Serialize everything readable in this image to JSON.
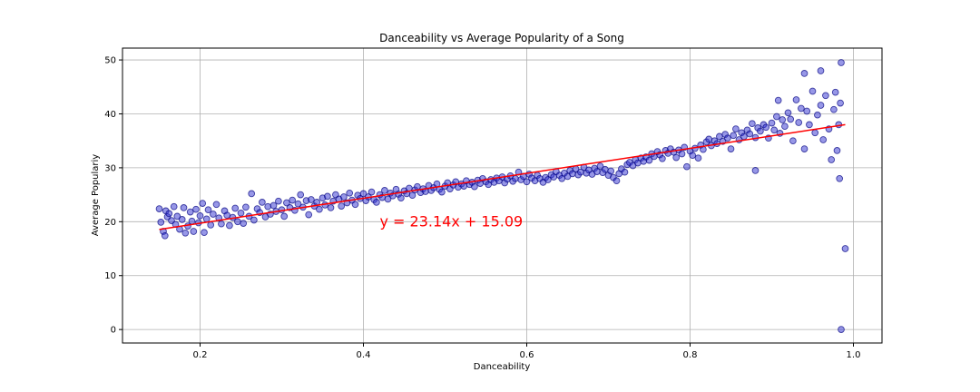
{
  "chart_data": {
    "type": "scatter",
    "title": "Danceability vs Average Popularity of a Song",
    "xlabel": "Danceability",
    "ylabel": "Average Populariy",
    "xlim": [
      0.105,
      1.035
    ],
    "ylim": [
      -2.5,
      52.2
    ],
    "xticks": [
      0.2,
      0.4,
      0.6,
      0.8,
      1.0
    ],
    "xtick_labels": [
      "0.2",
      "0.4",
      "0.6",
      "0.8",
      "1.0"
    ],
    "yticks": [
      0,
      10,
      20,
      30,
      40,
      50
    ],
    "ytick_labels": [
      "0",
      "10",
      "20",
      "30",
      "40",
      "50"
    ],
    "grid": true,
    "point_color": "#3030d0",
    "point_edge_color": "#000080",
    "line_color": "#ff0000",
    "regression": {
      "slope": 23.14,
      "intercept": 15.09,
      "x_range": [
        0.15,
        0.99
      ]
    },
    "annotation": {
      "text": "y = 23.14x + 15.09",
      "x": 0.42,
      "y": 20
    },
    "outliers": [
      [
        0.985,
        0
      ],
      [
        0.99,
        15
      ],
      [
        0.985,
        49.5
      ],
      [
        0.96,
        48
      ],
      [
        0.94,
        47.5
      ],
      [
        0.88,
        29.5
      ],
      [
        0.983,
        28
      ]
    ],
    "points": [
      [
        0.15,
        22.4
      ],
      [
        0.152,
        19.9
      ],
      [
        0.155,
        18.2
      ],
      [
        0.157,
        17.4
      ],
      [
        0.158,
        22.0
      ],
      [
        0.16,
        20.9
      ],
      [
        0.162,
        21.5
      ],
      [
        0.165,
        20.2
      ],
      [
        0.168,
        22.8
      ],
      [
        0.17,
        19.5
      ],
      [
        0.172,
        21.0
      ],
      [
        0.175,
        18.6
      ],
      [
        0.178,
        20.4
      ],
      [
        0.18,
        22.6
      ],
      [
        0.182,
        17.9
      ],
      [
        0.185,
        19.2
      ],
      [
        0.188,
        21.8
      ],
      [
        0.19,
        20.1
      ],
      [
        0.192,
        18.2
      ],
      [
        0.195,
        22.3
      ],
      [
        0.198,
        19.8
      ],
      [
        0.2,
        21.1
      ],
      [
        0.203,
        23.4
      ],
      [
        0.205,
        18.0
      ],
      [
        0.208,
        20.5
      ],
      [
        0.21,
        22.2
      ],
      [
        0.213,
        19.4
      ],
      [
        0.216,
        21.4
      ],
      [
        0.22,
        23.2
      ],
      [
        0.223,
        20.7
      ],
      [
        0.226,
        19.6
      ],
      [
        0.23,
        22.0
      ],
      [
        0.233,
        21.2
      ],
      [
        0.236,
        19.3
      ],
      [
        0.24,
        20.8
      ],
      [
        0.243,
        22.5
      ],
      [
        0.246,
        20.0
      ],
      [
        0.25,
        21.6
      ],
      [
        0.253,
        19.7
      ],
      [
        0.256,
        22.7
      ],
      [
        0.26,
        21.0
      ],
      [
        0.263,
        25.2
      ],
      [
        0.266,
        20.3
      ],
      [
        0.27,
        22.4
      ],
      [
        0.273,
        21.7
      ],
      [
        0.276,
        23.6
      ],
      [
        0.28,
        20.9
      ],
      [
        0.283,
        22.8
      ],
      [
        0.286,
        21.4
      ],
      [
        0.29,
        23.0
      ],
      [
        0.293,
        21.9
      ],
      [
        0.296,
        23.8
      ],
      [
        0.3,
        22.2
      ],
      [
        0.303,
        21.0
      ],
      [
        0.306,
        23.5
      ],
      [
        0.31,
        22.6
      ],
      [
        0.313,
        24.0
      ],
      [
        0.316,
        22.1
      ],
      [
        0.32,
        23.3
      ],
      [
        0.323,
        25.0
      ],
      [
        0.326,
        22.7
      ],
      [
        0.33,
        23.9
      ],
      [
        0.333,
        21.3
      ],
      [
        0.336,
        24.1
      ],
      [
        0.34,
        22.9
      ],
      [
        0.343,
        23.6
      ],
      [
        0.346,
        22.3
      ],
      [
        0.35,
        24.4
      ],
      [
        0.353,
        23.1
      ],
      [
        0.356,
        24.7
      ],
      [
        0.36,
        22.6
      ],
      [
        0.363,
        23.8
      ],
      [
        0.366,
        25.0
      ],
      [
        0.37,
        24.2
      ],
      [
        0.373,
        22.9
      ],
      [
        0.376,
        24.6
      ],
      [
        0.38,
        23.5
      ],
      [
        0.383,
        25.3
      ],
      [
        0.386,
        24.0
      ],
      [
        0.39,
        23.2
      ],
      [
        0.393,
        24.9
      ],
      [
        0.396,
        24.3
      ],
      [
        0.4,
        25.2
      ],
      [
        0.403,
        23.9
      ],
      [
        0.406,
        24.6
      ],
      [
        0.41,
        25.5
      ],
      [
        0.413,
        24.1
      ],
      [
        0.416,
        23.6
      ],
      [
        0.42,
        25.0
      ],
      [
        0.423,
        24.5
      ],
      [
        0.426,
        25.8
      ],
      [
        0.43,
        24.2
      ],
      [
        0.433,
        25.3
      ],
      [
        0.436,
        24.8
      ],
      [
        0.44,
        26.0
      ],
      [
        0.443,
        25.1
      ],
      [
        0.446,
        24.4
      ],
      [
        0.45,
        25.7
      ],
      [
        0.453,
        25.2
      ],
      [
        0.456,
        26.2
      ],
      [
        0.46,
        24.9
      ],
      [
        0.463,
        25.9
      ],
      [
        0.466,
        26.5
      ],
      [
        0.47,
        25.4
      ],
      [
        0.473,
        26.1
      ],
      [
        0.476,
        25.6
      ],
      [
        0.48,
        26.7
      ],
      [
        0.483,
        25.8
      ],
      [
        0.486,
        26.3
      ],
      [
        0.49,
        27.0
      ],
      [
        0.493,
        26.0
      ],
      [
        0.496,
        25.5
      ],
      [
        0.5,
        26.6
      ],
      [
        0.503,
        27.2
      ],
      [
        0.506,
        26.1
      ],
      [
        0.51,
        26.8
      ],
      [
        0.513,
        27.4
      ],
      [
        0.516,
        26.4
      ],
      [
        0.52,
        27.0
      ],
      [
        0.523,
        26.6
      ],
      [
        0.526,
        27.6
      ],
      [
        0.53,
        26.9
      ],
      [
        0.533,
        27.3
      ],
      [
        0.536,
        26.5
      ],
      [
        0.54,
        27.7
      ],
      [
        0.543,
        27.1
      ],
      [
        0.546,
        28.0
      ],
      [
        0.55,
        27.4
      ],
      [
        0.553,
        26.9
      ],
      [
        0.556,
        27.8
      ],
      [
        0.56,
        27.3
      ],
      [
        0.563,
        28.1
      ],
      [
        0.566,
        27.6
      ],
      [
        0.57,
        28.3
      ],
      [
        0.573,
        27.2
      ],
      [
        0.576,
        27.9
      ],
      [
        0.58,
        28.5
      ],
      [
        0.583,
        27.5
      ],
      [
        0.586,
        28.0
      ],
      [
        0.59,
        29.2
      ],
      [
        0.593,
        27.8
      ],
      [
        0.596,
        28.4
      ],
      [
        0.6,
        27.4
      ],
      [
        0.603,
        28.8
      ],
      [
        0.606,
        28.1
      ],
      [
        0.61,
        27.6
      ],
      [
        0.613,
        28.6
      ],
      [
        0.616,
        28.0
      ],
      [
        0.62,
        27.3
      ],
      [
        0.623,
        28.2
      ],
      [
        0.626,
        27.8
      ],
      [
        0.63,
        28.7
      ],
      [
        0.633,
        28.3
      ],
      [
        0.636,
        29.3
      ],
      [
        0.64,
        28.6
      ],
      [
        0.643,
        28.0
      ],
      [
        0.646,
        29.0
      ],
      [
        0.65,
        28.4
      ],
      [
        0.653,
        29.5
      ],
      [
        0.656,
        28.9
      ],
      [
        0.66,
        29.8
      ],
      [
        0.663,
        28.7
      ],
      [
        0.666,
        29.2
      ],
      [
        0.67,
        30.1
      ],
      [
        0.673,
        29.0
      ],
      [
        0.676,
        29.6
      ],
      [
        0.68,
        28.8
      ],
      [
        0.683,
        29.9
      ],
      [
        0.686,
        29.3
      ],
      [
        0.69,
        30.3
      ],
      [
        0.693,
        29.1
      ],
      [
        0.696,
        29.7
      ],
      [
        0.7,
        28.6
      ],
      [
        0.703,
        29.4
      ],
      [
        0.706,
        28.2
      ],
      [
        0.71,
        27.6
      ],
      [
        0.713,
        28.9
      ],
      [
        0.716,
        29.8
      ],
      [
        0.72,
        29.2
      ],
      [
        0.723,
        30.6
      ],
      [
        0.726,
        31.0
      ],
      [
        0.73,
        30.4
      ],
      [
        0.733,
        31.5
      ],
      [
        0.736,
        30.9
      ],
      [
        0.74,
        31.8
      ],
      [
        0.743,
        31.2
      ],
      [
        0.746,
        32.0
      ],
      [
        0.75,
        31.4
      ],
      [
        0.753,
        32.6
      ],
      [
        0.756,
        32.1
      ],
      [
        0.76,
        33.0
      ],
      [
        0.763,
        32.4
      ],
      [
        0.766,
        31.7
      ],
      [
        0.77,
        33.2
      ],
      [
        0.773,
        32.7
      ],
      [
        0.776,
        33.5
      ],
      [
        0.78,
        32.9
      ],
      [
        0.783,
        31.9
      ],
      [
        0.786,
        33.3
      ],
      [
        0.79,
        32.6
      ],
      [
        0.793,
        33.8
      ],
      [
        0.796,
        30.2
      ],
      [
        0.8,
        33.1
      ],
      [
        0.803,
        32.3
      ],
      [
        0.806,
        33.6
      ],
      [
        0.81,
        31.8
      ],
      [
        0.813,
        34.2
      ],
      [
        0.816,
        33.4
      ],
      [
        0.82,
        34.8
      ],
      [
        0.823,
        35.3
      ],
      [
        0.826,
        34.1
      ],
      [
        0.83,
        35.0
      ],
      [
        0.833,
        34.5
      ],
      [
        0.836,
        35.8
      ],
      [
        0.84,
        34.9
      ],
      [
        0.843,
        36.2
      ],
      [
        0.846,
        35.5
      ],
      [
        0.85,
        33.5
      ],
      [
        0.853,
        36.0
      ],
      [
        0.856,
        37.2
      ],
      [
        0.86,
        35.2
      ],
      [
        0.863,
        36.5
      ],
      [
        0.866,
        35.8
      ],
      [
        0.87,
        37.0
      ],
      [
        0.873,
        36.3
      ],
      [
        0.876,
        38.2
      ],
      [
        0.88,
        35.6
      ],
      [
        0.883,
        37.4
      ],
      [
        0.886,
        36.8
      ],
      [
        0.89,
        38.0
      ],
      [
        0.893,
        37.5
      ],
      [
        0.896,
        35.5
      ],
      [
        0.9,
        38.3
      ],
      [
        0.903,
        37.0
      ],
      [
        0.906,
        39.5
      ],
      [
        0.908,
        42.5
      ],
      [
        0.91,
        36.4
      ],
      [
        0.913,
        38.9
      ],
      [
        0.916,
        37.7
      ],
      [
        0.92,
        40.2
      ],
      [
        0.923,
        39.0
      ],
      [
        0.926,
        35.0
      ],
      [
        0.93,
        42.6
      ],
      [
        0.933,
        38.4
      ],
      [
        0.936,
        41.0
      ],
      [
        0.94,
        33.5
      ],
      [
        0.943,
        40.5
      ],
      [
        0.946,
        38.0
      ],
      [
        0.95,
        44.2
      ],
      [
        0.953,
        36.5
      ],
      [
        0.956,
        39.8
      ],
      [
        0.96,
        41.6
      ],
      [
        0.963,
        35.2
      ],
      [
        0.966,
        43.4
      ],
      [
        0.97,
        37.2
      ],
      [
        0.973,
        31.5
      ],
      [
        0.976,
        40.8
      ],
      [
        0.978,
        44.0
      ],
      [
        0.98,
        33.2
      ],
      [
        0.982,
        38.0
      ],
      [
        0.984,
        42.0
      ]
    ]
  }
}
